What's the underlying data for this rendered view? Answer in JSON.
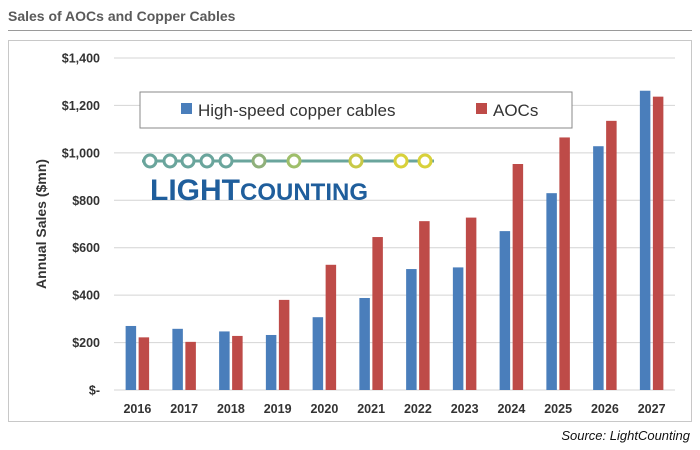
{
  "header": {
    "title": "Sales of AOCs and Copper Cables"
  },
  "footer": {
    "source": "Source: LightCounting"
  },
  "logo": {
    "text_light": "LIGHT",
    "text_counting": "COUNTING",
    "text_color": "#1f5e9c",
    "line_color": "#6aa59c",
    "dot_color": "#d8d13a"
  },
  "colors": {
    "copper": "#4a7ebb",
    "aoc": "#be4b48"
  },
  "chart_data": {
    "type": "bar",
    "ylabel": "Annual Sales ($mn)",
    "ylim": [
      0,
      1400
    ],
    "yticks": [
      {
        "value": 0,
        "label": "$-"
      },
      {
        "value": 200,
        "label": "$200"
      },
      {
        "value": 400,
        "label": "$400"
      },
      {
        "value": 600,
        "label": "$600"
      },
      {
        "value": 800,
        "label": "$800"
      },
      {
        "value": 1000,
        "label": "$1,000"
      },
      {
        "value": 1200,
        "label": "$1,200"
      },
      {
        "value": 1400,
        "label": "$1,400"
      }
    ],
    "grid": true,
    "legend_position": "top-left",
    "categories": [
      "2016",
      "2017",
      "2018",
      "2019",
      "2020",
      "2021",
      "2022",
      "2023",
      "2024",
      "2025",
      "2026",
      "2027"
    ],
    "series": [
      {
        "name": "High-speed copper cables",
        "values": [
          270,
          258,
          247,
          232,
          307,
          388,
          510,
          517,
          670,
          830,
          1028,
          1262
        ]
      },
      {
        "name": "AOCs",
        "values": [
          222,
          203,
          228,
          380,
          528,
          645,
          712,
          727,
          953,
          1065,
          1135,
          1237
        ]
      }
    ]
  }
}
